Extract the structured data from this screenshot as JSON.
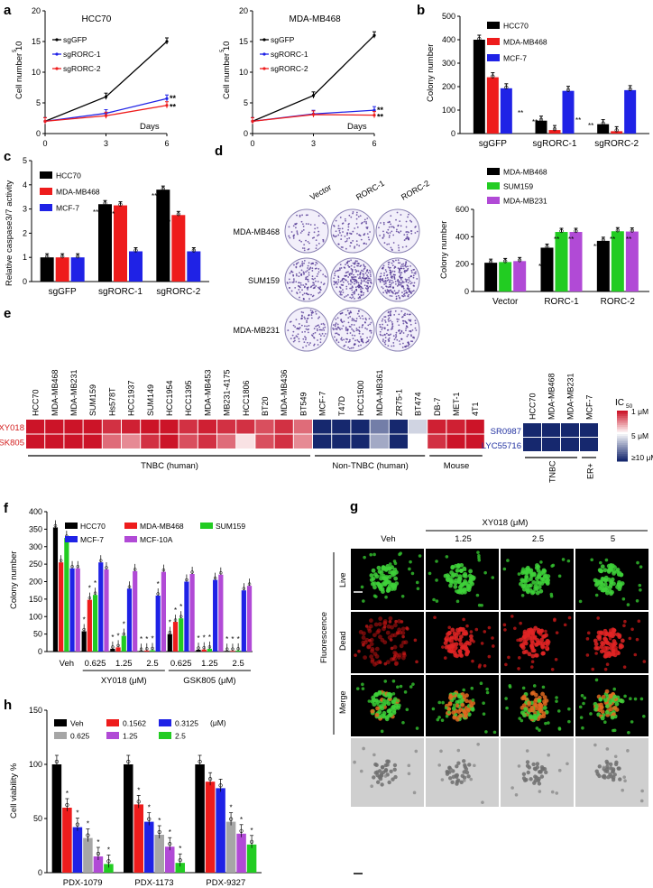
{
  "colors": {
    "black": "#000000",
    "red": "#ee1c1c",
    "blue": "#1f22e6",
    "green": "#22cc22",
    "purple": "#b14ad6",
    "gray": "#a6a6a6"
  },
  "panels": {
    "a": "a",
    "b": "b",
    "c": "c",
    "d": "d",
    "e": "e",
    "f": "f",
    "g": "g",
    "h": "h"
  },
  "chart_data": [
    {
      "id": "a1",
      "type": "line",
      "title": "HCC70",
      "xlabel": "Days",
      "ylabel": "Cell number 10",
      "ylabel_sup": "5",
      "x": [
        0,
        3,
        6
      ],
      "xlim": [
        0,
        6
      ],
      "ylim": [
        0,
        20
      ],
      "xticks": [
        "0",
        "3",
        "6"
      ],
      "yticks": [
        "0",
        "5",
        "10",
        "15",
        "20"
      ],
      "legend": [
        "sgGFP",
        "sgRORC-1",
        "sgRORC-2"
      ],
      "series": [
        {
          "name": "sgGFP",
          "color": "#000000",
          "values": [
            2,
            6,
            15
          ]
        },
        {
          "name": "sgRORC-1",
          "color": "#1f22e6",
          "values": [
            2,
            3.3,
            5.7
          ]
        },
        {
          "name": "sgRORC-2",
          "color": "#ee1c1c",
          "values": [
            2,
            2.9,
            4.6
          ]
        }
      ],
      "annotations": [
        "**",
        "**"
      ]
    },
    {
      "id": "a2",
      "type": "line",
      "title": "MDA-MB468",
      "xlabel": "Days",
      "ylabel": "Cell number 10",
      "ylabel_sup": "5",
      "x": [
        0,
        3,
        6
      ],
      "xlim": [
        0,
        6
      ],
      "ylim": [
        0,
        20
      ],
      "xticks": [
        "0",
        "3",
        "6"
      ],
      "yticks": [
        "0",
        "5",
        "10",
        "15",
        "20"
      ],
      "legend": [
        "sgGFP",
        "sgRORC-1",
        "sgRORC-2"
      ],
      "series": [
        {
          "name": "sgGFP",
          "color": "#000000",
          "values": [
            2,
            6.2,
            16
          ]
        },
        {
          "name": "sgRORC-1",
          "color": "#1f22e6",
          "values": [
            2,
            3.2,
            3.8
          ]
        },
        {
          "name": "sgRORC-2",
          "color": "#ee1c1c",
          "values": [
            2,
            3.1,
            3.0
          ]
        }
      ],
      "annotations": [
        "**",
        "**"
      ]
    },
    {
      "id": "b",
      "type": "bar",
      "ylabel": "Colony number",
      "ylim": [
        0,
        500
      ],
      "yticks": [
        "0",
        "100",
        "200",
        "300",
        "400",
        "500"
      ],
      "categories": [
        "sgGFP",
        "sgRORC-1",
        "sgRORC-2"
      ],
      "series": [
        {
          "name": "HCC70",
          "color": "#000000",
          "values": [
            400,
            55,
            40
          ]
        },
        {
          "name": "MDA-MB468",
          "color": "#ee1c1c",
          "values": [
            240,
            15,
            10
          ]
        },
        {
          "name": "MCF-7",
          "color": "#1f22e6",
          "values": [
            193,
            182,
            185
          ]
        }
      ],
      "annotations": [
        "**",
        "**",
        "**",
        "**"
      ]
    },
    {
      "id": "c",
      "type": "bar",
      "ylabel": "Relative caspase3/7 activity",
      "ylim": [
        0,
        5
      ],
      "yticks": [
        "0",
        "1",
        "2",
        "3",
        "4",
        "5"
      ],
      "categories": [
        "sgGFP",
        "sgRORC-1",
        "sgRORC-2"
      ],
      "series": [
        {
          "name": "HCC70",
          "color": "#000000",
          "values": [
            1.0,
            3.2,
            3.8
          ]
        },
        {
          "name": "MDA-MB468",
          "color": "#ee1c1c",
          "values": [
            1.0,
            3.15,
            2.75
          ]
        },
        {
          "name": "MCF-7",
          "color": "#1f22e6",
          "values": [
            1.0,
            1.25,
            1.25
          ]
        }
      ],
      "annotations": [
        "**",
        "**",
        "**",
        "**"
      ]
    },
    {
      "id": "d",
      "type": "bar",
      "ylabel": "Colony number",
      "ylim": [
        0,
        600
      ],
      "yticks": [
        "0",
        "200",
        "400",
        "600"
      ],
      "categories": [
        "Vector",
        "RORC-1",
        "RORC-2"
      ],
      "series": [
        {
          "name": "MDA-MB468",
          "color": "#000000",
          "values": [
            210,
            320,
            370
          ]
        },
        {
          "name": "SUM159",
          "color": "#22cc22",
          "values": [
            215,
            435,
            440
          ]
        },
        {
          "name": "MDA-MB231",
          "color": "#b14ad6",
          "values": [
            222,
            435,
            438
          ]
        }
      ],
      "annotations": [
        "**",
        "**",
        "**",
        "**",
        "**",
        "**"
      ]
    },
    {
      "id": "e",
      "type": "heatmap",
      "rows": [
        "XY018",
        "GSK805"
      ],
      "columns": [
        "HCC70",
        "MDA-MB468",
        "MDA-MB231",
        "SUM159",
        "Hs578T",
        "HCC1937",
        "SUM149",
        "HCC1954",
        "HCC1395",
        "MDA-MB453",
        "MB231-4175",
        "HCC1806",
        "BT20",
        "MDA-MB436",
        "BT549",
        "MCF-7",
        "T47D",
        "HCC1500",
        "MDA-MB361",
        "ZR75-1",
        "BT474",
        "DB-7",
        "MET-1",
        "4T1"
      ],
      "values_uM": [
        [
          1,
          1,
          1,
          1,
          1.5,
          1.2,
          1,
          1,
          1.5,
          1.2,
          1.5,
          1.5,
          2,
          1.5,
          2.5,
          10,
          10,
          10,
          8,
          10,
          6,
          1.2,
          1.2,
          1
        ],
        [
          1,
          1,
          1,
          1,
          2.5,
          3,
          1.5,
          1,
          2,
          1.5,
          2.5,
          4.5,
          2,
          1.5,
          3,
          10,
          10,
          10,
          7,
          10,
          5,
          1.5,
          1,
          1
        ]
      ],
      "groups": [
        "TNBC (human)",
        "Non-TNBC (human)",
        "Mouse"
      ],
      "colorbar_label": "IC",
      "colorbar_sub": "50",
      "colorbar_ticks": [
        "1 μM",
        "5 μM",
        "≥10 μM"
      ]
    },
    {
      "id": "e2",
      "type": "heatmap",
      "rows": [
        "SR0987",
        "LYC55716"
      ],
      "columns": [
        "HCC70",
        "MDA-MB468",
        "MDA-MB231",
        "MCF-7"
      ],
      "values_uM": [
        [
          10,
          10,
          10,
          10
        ],
        [
          10,
          10,
          10,
          10
        ]
      ],
      "groups": [
        "TNBC",
        "ER+"
      ]
    },
    {
      "id": "f",
      "type": "bar",
      "ylabel": "Colony number",
      "ylim": [
        0,
        400
      ],
      "yticks": [
        "0",
        "50",
        "100",
        "150",
        "200",
        "250",
        "300",
        "350",
        "400"
      ],
      "categories": [
        "Veh",
        "0.625",
        "1.25",
        "2.5",
        "0.625",
        "1.25",
        "2.5"
      ],
      "group_labels": [
        "XY018 (μM)",
        "GSK805 (μM)"
      ],
      "series": [
        {
          "name": "HCC70",
          "color": "#000000",
          "values": [
            355,
            58,
            8,
            2,
            50,
            5,
            2
          ]
        },
        {
          "name": "MDA-MB468",
          "color": "#ee1c1c",
          "values": [
            255,
            148,
            12,
            3,
            85,
            6,
            2
          ]
        },
        {
          "name": "SUM159",
          "color": "#22cc22",
          "values": [
            325,
            162,
            45,
            4,
            95,
            8,
            3
          ]
        },
        {
          "name": "MCF-7",
          "color": "#1f22e6",
          "values": [
            238,
            255,
            180,
            160,
            200,
            205,
            175
          ]
        },
        {
          "name": "MCF-10A",
          "color": "#b14ad6",
          "values": [
            238,
            235,
            230,
            228,
            222,
            220,
            188
          ]
        }
      ],
      "annotations": [
        "*",
        "*"
      ]
    },
    {
      "id": "h",
      "type": "bar",
      "ylabel": "Cell viability %",
      "ylim": [
        0,
        150
      ],
      "yticks": [
        "0",
        "50",
        "100",
        "150"
      ],
      "categories": [
        "PDX-1079",
        "PDX-1173",
        "PDX-9327"
      ],
      "unit": "(μM)",
      "series": [
        {
          "name": "Veh",
          "color": "#000000",
          "values": [
            100,
            100,
            100
          ]
        },
        {
          "name": "0.1562",
          "color": "#ee1c1c",
          "values": [
            60,
            63,
            84
          ]
        },
        {
          "name": "0.3125",
          "color": "#1f22e6",
          "values": [
            42,
            47,
            78
          ]
        },
        {
          "name": "0.625",
          "color": "#a6a6a6",
          "values": [
            32,
            35,
            47
          ]
        },
        {
          "name": "1.25",
          "color": "#b14ad6",
          "values": [
            15,
            24,
            36
          ]
        },
        {
          "name": "2.5",
          "color": "#22cc22",
          "values": [
            8,
            9,
            26
          ]
        }
      ],
      "annotations": [
        "*",
        "*"
      ]
    }
  ],
  "panel_d_plates": {
    "columns": [
      "Vector",
      "RORC-1",
      "RORC-2"
    ],
    "rows": [
      "MDA-MB468",
      "SUM159",
      "MDA-MB231"
    ],
    "density": [
      [
        0.25,
        0.35,
        0.3
      ],
      [
        0.55,
        0.9,
        0.9
      ],
      [
        0.4,
        0.55,
        0.55
      ]
    ]
  },
  "panel_g": {
    "title": "XY018 (μM)",
    "columns": [
      "Veh",
      "1.25",
      "2.5",
      "5"
    ],
    "rows": [
      "Live",
      "Dead",
      "Merge"
    ],
    "side_label": "Fluorescence"
  }
}
